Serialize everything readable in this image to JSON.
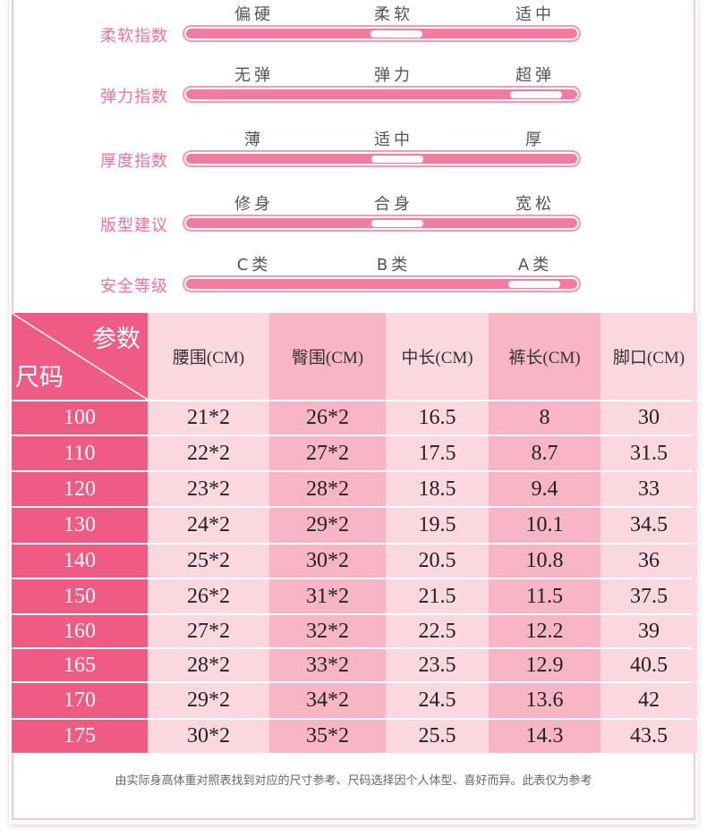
{
  "indices": [
    {
      "label": "柔软指数",
      "options": [
        "偏硬",
        "柔软",
        "适中"
      ],
      "selected": 1
    },
    {
      "label": "弹力指数",
      "options": [
        "无弹",
        "弹力",
        "超弹"
      ],
      "selected": 2
    },
    {
      "label": "厚度指数",
      "options": [
        "薄",
        "适中",
        "厚"
      ],
      "selected": 1
    },
    {
      "label": "版型建议",
      "options": [
        "修身",
        "合身",
        "宽松"
      ],
      "selected": 1
    },
    {
      "label": "安全等级",
      "options": [
        "C类",
        "B类",
        "A类"
      ],
      "selected": 2
    }
  ],
  "table": {
    "corner_top": "参数",
    "corner_bottom": "尺码",
    "columns": [
      "腰围(CM)",
      "臀围(CM)",
      "中长(CM)",
      "裤长(CM)",
      "脚口(CM)"
    ],
    "rows": [
      {
        "size": "100",
        "values": [
          "21*2",
          "26*2",
          "16.5",
          "8",
          "30"
        ]
      },
      {
        "size": "110",
        "values": [
          "22*2",
          "27*2",
          "17.5",
          "8.7",
          "31.5"
        ]
      },
      {
        "size": "120",
        "values": [
          "23*2",
          "28*2",
          "18.5",
          "9.4",
          "33"
        ]
      },
      {
        "size": "130",
        "values": [
          "24*2",
          "29*2",
          "19.5",
          "10.1",
          "34.5"
        ]
      },
      {
        "size": "140",
        "values": [
          "25*2",
          "30*2",
          "20.5",
          "10.8",
          "36"
        ]
      },
      {
        "size": "150",
        "values": [
          "26*2",
          "31*2",
          "21.5",
          "11.5",
          "37.5"
        ]
      },
      {
        "size": "160",
        "values": [
          "27*2",
          "32*2",
          "22.5",
          "12.2",
          "39"
        ]
      },
      {
        "size": "165",
        "values": [
          "28*2",
          "33*2",
          "23.5",
          "12.9",
          "40.5"
        ]
      },
      {
        "size": "170",
        "values": [
          "29*2",
          "34*2",
          "24.5",
          "13.6",
          "42"
        ]
      },
      {
        "size": "175",
        "values": [
          "30*2",
          "35*2",
          "25.5",
          "14.3",
          "43.5"
        ]
      }
    ]
  },
  "note": "由实际身高体重对照表找到对应的尺寸参考、尺码选择因个人体型、喜好而异。此表仅为参考"
}
